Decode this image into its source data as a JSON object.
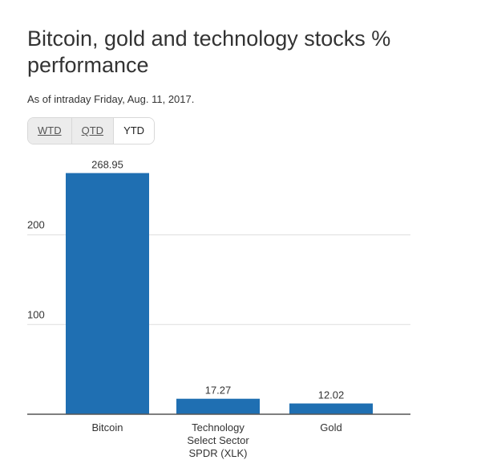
{
  "header": {
    "title": "Bitcoin, gold and technology stocks % performance",
    "subtitle": "As of intraday Friday, Aug. 11, 2017."
  },
  "tabs": [
    {
      "label": "WTD",
      "active": false
    },
    {
      "label": "QTD",
      "active": false
    },
    {
      "label": "YTD",
      "active": true
    }
  ],
  "colors": {
    "bar": "#1f6fb2",
    "grid": "#dddddd",
    "axis": "#555555"
  },
  "chart_data": {
    "type": "bar",
    "categories": [
      "Bitcoin",
      "Technology Select Sector SPDR (XLK)",
      "Gold"
    ],
    "category_lines": [
      [
        "Bitcoin"
      ],
      [
        "Technology",
        "Select Sector",
        "SPDR (XLK)"
      ],
      [
        "Gold"
      ]
    ],
    "values": [
      268.95,
      17.27,
      12.02
    ],
    "value_labels": [
      "268.95",
      "17.27",
      "12.02"
    ],
    "yticks": [
      100,
      200
    ],
    "ylim": [
      0,
      280
    ],
    "grid": true,
    "title": "Bitcoin, gold and technology stocks % performance",
    "xlabel": "",
    "ylabel": ""
  }
}
